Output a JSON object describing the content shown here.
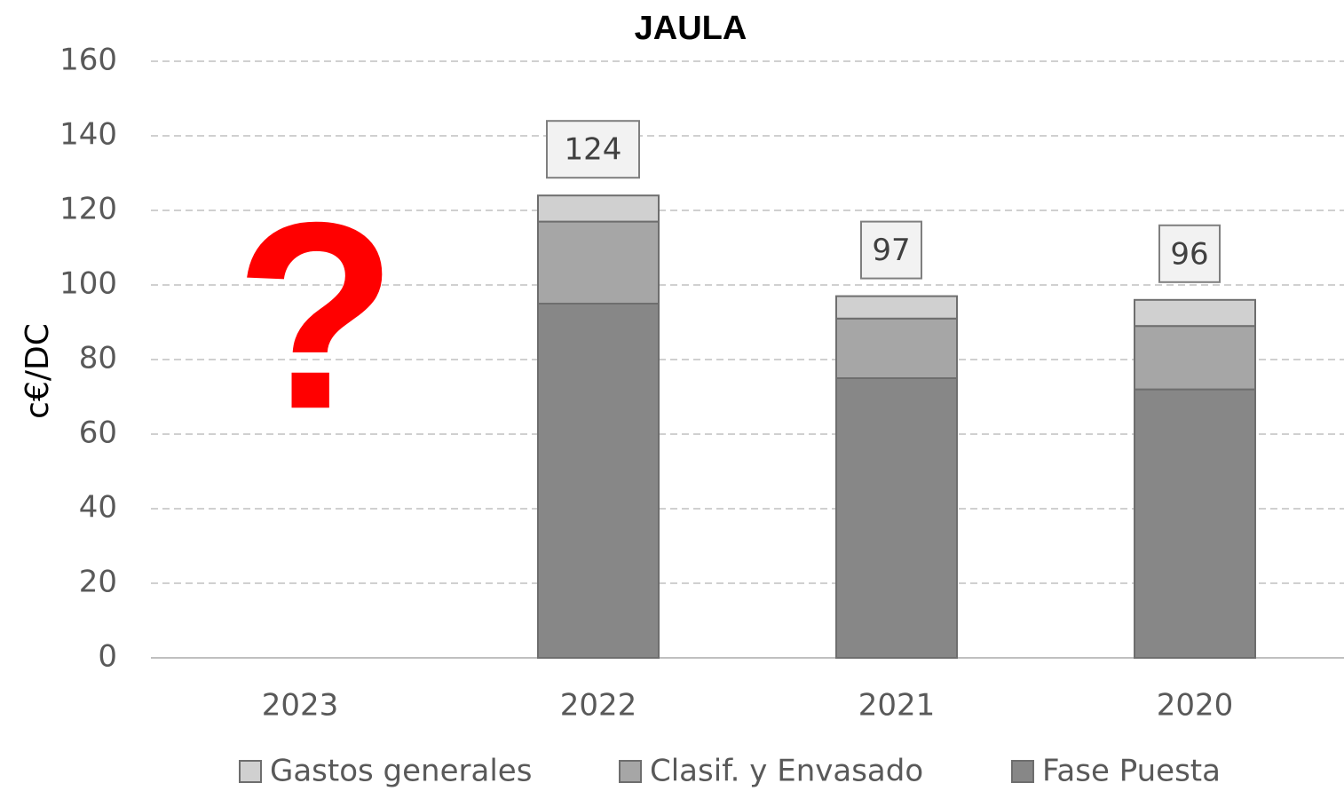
{
  "chart_data": {
    "type": "stacked_bar",
    "title": "JAULA",
    "ylabel": "c€/DC",
    "categories": [
      "2023",
      "2022",
      "2021",
      "2020"
    ],
    "series": [
      {
        "name": "Gastos generales",
        "color": "#d0d0d0",
        "values": [
          null,
          7,
          6,
          7
        ]
      },
      {
        "name": "Clasif. y Envasado",
        "color": "#a6a6a6",
        "values": [
          null,
          22,
          16,
          17
        ]
      },
      {
        "name": "Fase Puesta",
        "color": "#878787",
        "values": [
          null,
          95,
          75,
          72
        ]
      }
    ],
    "totals": [
      null,
      124,
      97,
      96
    ],
    "annotations": [
      "?"
    ],
    "ylim": [
      0,
      160
    ],
    "yticks": [
      0,
      20,
      40,
      60,
      80,
      100,
      120,
      140,
      160
    ],
    "grid": true,
    "legend": "bottom"
  }
}
